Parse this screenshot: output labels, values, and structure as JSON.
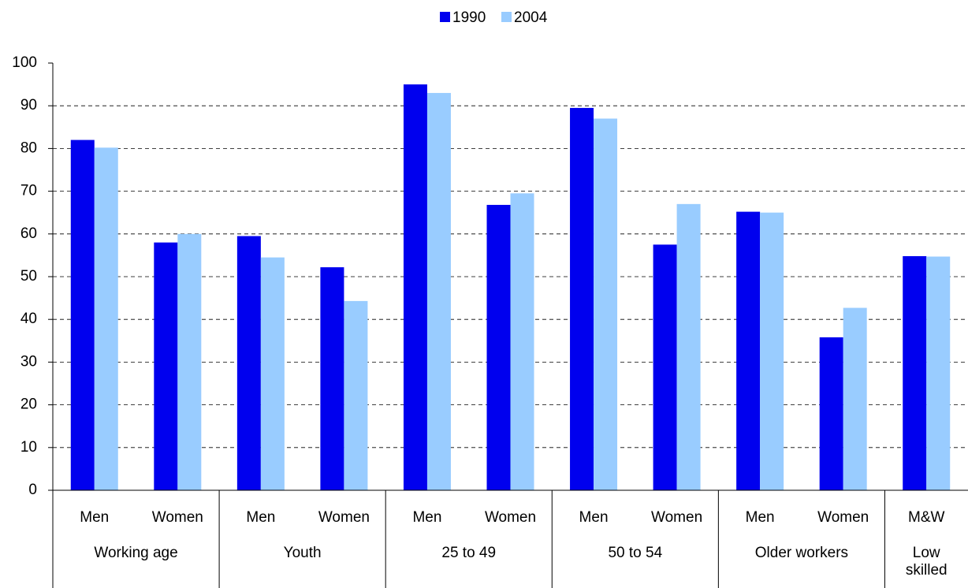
{
  "chart_data": {
    "type": "bar",
    "groups": [
      {
        "name": "Working age",
        "categories": [
          "Men",
          "Women"
        ]
      },
      {
        "name": "Youth",
        "categories": [
          "Men",
          "Women"
        ]
      },
      {
        "name": "25 to 49",
        "categories": [
          "Men",
          "Women"
        ]
      },
      {
        "name": "50 to 54",
        "categories": [
          "Men",
          "Women"
        ]
      },
      {
        "name": "Older workers",
        "categories": [
          "Men",
          "Women"
        ]
      },
      {
        "name": "Low skilled",
        "categories": [
          "M&W"
        ]
      }
    ],
    "series": [
      {
        "name": "1990",
        "color": "#0000ee",
        "values": [
          82,
          58,
          59.5,
          52.2,
          95,
          66.8,
          89.5,
          57.5,
          65.2,
          35.8,
          54.8
        ]
      },
      {
        "name": "2004",
        "color": "#99ccff",
        "values": [
          80.2,
          60,
          54.5,
          44.3,
          93,
          69.5,
          87,
          67,
          65,
          42.7,
          54.7
        ]
      }
    ],
    "ylim": [
      0,
      100
    ],
    "yticks": [
      0,
      10,
      20,
      30,
      40,
      50,
      60,
      70,
      80,
      90,
      100
    ],
    "grid": true
  }
}
